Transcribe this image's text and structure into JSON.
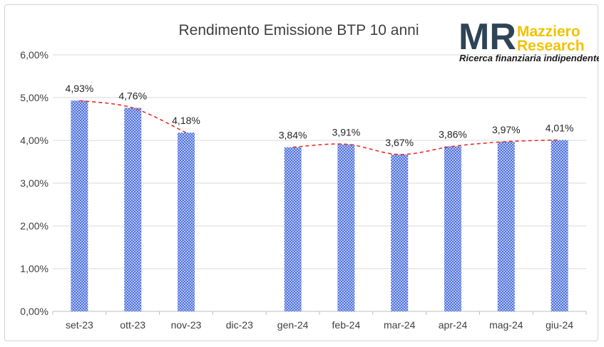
{
  "logo": {
    "letters": "MR",
    "brand_line1": "Mazziero",
    "brand_line2": "Research",
    "tagline": "Ricerca finanziaria indipendente",
    "colors": {
      "letters": "#2e4456",
      "brand": "#f2c200"
    }
  },
  "chart_data": {
    "type": "bar",
    "title": "Rendimento Emissione BTP 10 anni",
    "xlabel": "",
    "ylabel": "",
    "categories": [
      "set-23",
      "ott-23",
      "nov-23",
      "dic-23",
      "gen-24",
      "feb-24",
      "mar-24",
      "apr-24",
      "mag-24",
      "giu-24"
    ],
    "values": [
      4.93,
      4.76,
      4.18,
      null,
      3.84,
      3.91,
      3.67,
      3.86,
      3.97,
      4.01
    ],
    "data_labels": [
      "4,93%",
      "4,76%",
      "4,18%",
      "",
      "3,84%",
      "3,91%",
      "3,67%",
      "3,86%",
      "3,97%",
      "4,01%"
    ],
    "ylim": [
      0,
      6
    ],
    "yticks": [
      0,
      1,
      2,
      3,
      4,
      5,
      6
    ],
    "ytick_labels": [
      "0,00%",
      "1,00%",
      "2,00%",
      "3,00%",
      "4,00%",
      "5,00%",
      "6,00%"
    ],
    "grid": true,
    "legend": "none",
    "bar_pattern": "blue-crosshatch",
    "colors": {
      "bar": "#4a6ee0",
      "trend": "#e8302a"
    },
    "trendline": "red-dashed-smooth"
  }
}
